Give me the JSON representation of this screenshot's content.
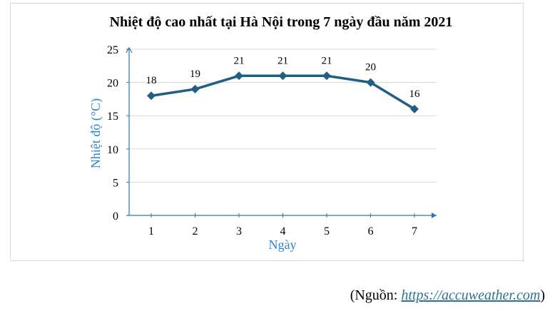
{
  "chart_data": {
    "type": "line",
    "title": "Nhiệt độ cao nhất tại Hà Nội trong 7 ngày đầu năm 2021",
    "xlabel": "Ngày",
    "ylabel": "Nhiệt độ (°C)",
    "categories": [
      "1",
      "2",
      "3",
      "4",
      "5",
      "6",
      "7"
    ],
    "values": [
      18,
      19,
      21,
      21,
      21,
      20,
      16
    ],
    "ylim": [
      0,
      25
    ],
    "yticks": [
      "0",
      "5",
      "10",
      "15",
      "20",
      "25"
    ],
    "grid": true,
    "data_labels": true,
    "colors": {
      "line": "#1f5f7f",
      "axis": "#2e75b6",
      "axis_title": "#2e86c8",
      "grid": "#d9d9d9"
    }
  },
  "source": {
    "prefix": "(Nguồn: ",
    "link": "https://accuweather.com",
    "suffix": ")"
  }
}
